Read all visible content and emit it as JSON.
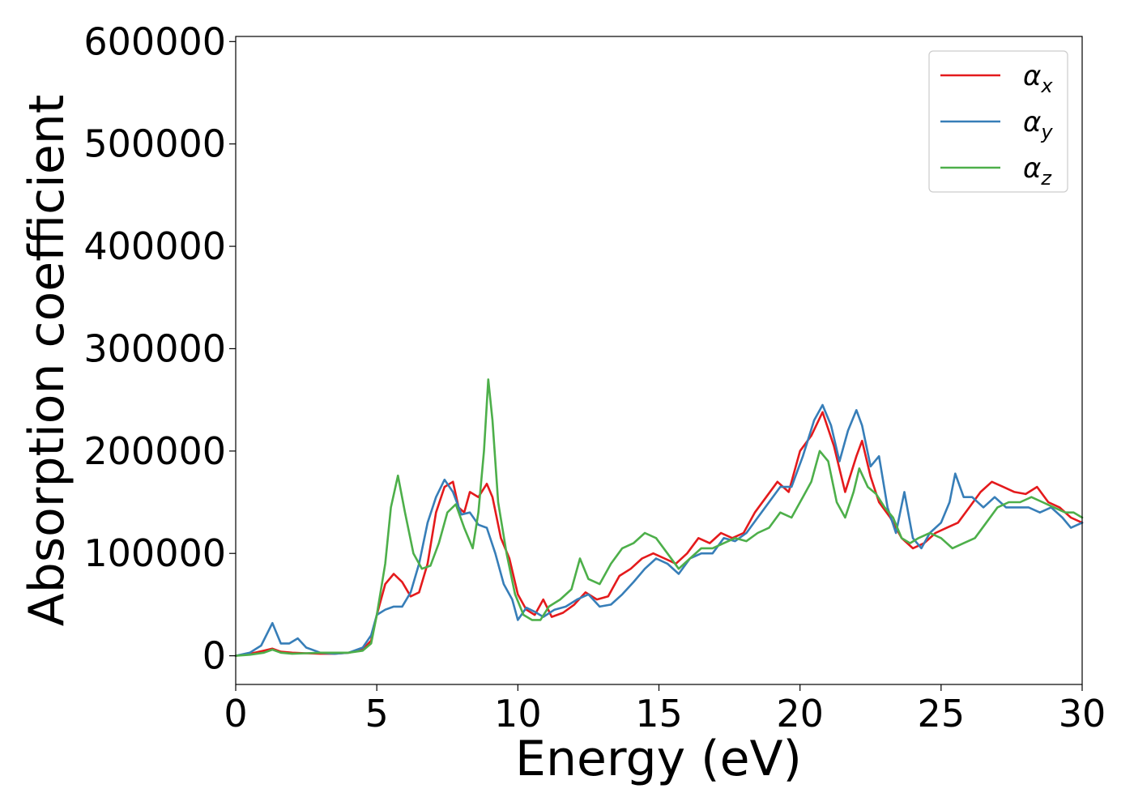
{
  "chart_data": {
    "type": "line",
    "xlabel": "Energy (eV)",
    "ylabel": "Absorption coefficient",
    "xlim": [
      0,
      30
    ],
    "ylim": [
      -28000,
      605000
    ],
    "xticks": [
      0,
      5,
      10,
      15,
      20,
      25,
      30
    ],
    "yticks": [
      0,
      100000,
      200000,
      300000,
      400000,
      500000,
      600000
    ],
    "grid": false,
    "legend_position": "top-right",
    "series": [
      {
        "name": "αx",
        "label_base": "α",
        "label_sub": "x",
        "color": "#e41a1c",
        "x": [
          0,
          0.5,
          1.0,
          1.3,
          1.6,
          2.0,
          2.5,
          3.0,
          3.5,
          4.0,
          4.5,
          4.8,
          5.0,
          5.3,
          5.6,
          5.9,
          6.2,
          6.5,
          6.8,
          7.1,
          7.4,
          7.7,
          7.9,
          8.1,
          8.3,
          8.6,
          8.9,
          9.1,
          9.4,
          9.7,
          10.0,
          10.3,
          10.6,
          10.9,
          11.2,
          11.6,
          12.0,
          12.4,
          12.8,
          13.2,
          13.6,
          14.0,
          14.4,
          14.8,
          15.2,
          15.6,
          16.0,
          16.4,
          16.8,
          17.2,
          17.6,
          18.0,
          18.4,
          18.8,
          19.2,
          19.6,
          20.0,
          20.4,
          20.8,
          21.2,
          21.6,
          22.0,
          22.2,
          22.5,
          22.8,
          23.2,
          23.6,
          24.0,
          24.4,
          24.8,
          25.2,
          25.6,
          26.0,
          26.4,
          26.8,
          27.2,
          27.6,
          28.0,
          28.4,
          28.8,
          29.2,
          29.6,
          30.0
        ],
        "y": [
          0,
          2000,
          5000,
          7000,
          4000,
          3000,
          2500,
          2000,
          2000,
          3000,
          6000,
          15000,
          40000,
          70000,
          80000,
          72000,
          58000,
          62000,
          90000,
          140000,
          165000,
          170000,
          145000,
          140000,
          160000,
          155000,
          168000,
          155000,
          115000,
          95000,
          60000,
          45000,
          40000,
          55000,
          38000,
          42000,
          50000,
          62000,
          55000,
          58000,
          78000,
          85000,
          95000,
          100000,
          95000,
          90000,
          100000,
          115000,
          110000,
          120000,
          115000,
          120000,
          140000,
          155000,
          170000,
          160000,
          200000,
          215000,
          238000,
          205000,
          160000,
          195000,
          210000,
          175000,
          150000,
          135000,
          115000,
          105000,
          110000,
          120000,
          125000,
          130000,
          145000,
          160000,
          170000,
          165000,
          160000,
          158000,
          165000,
          150000,
          145000,
          135000,
          130000
        ]
      },
      {
        "name": "αy",
        "label_base": "α",
        "label_sub": "y",
        "color": "#377eb8",
        "x": [
          0,
          0.5,
          0.9,
          1.3,
          1.6,
          1.9,
          2.2,
          2.5,
          3.0,
          3.5,
          4.0,
          4.5,
          4.8,
          5.0,
          5.3,
          5.6,
          5.9,
          6.2,
          6.5,
          6.8,
          7.1,
          7.4,
          7.7,
          8.0,
          8.3,
          8.6,
          8.9,
          9.2,
          9.5,
          9.8,
          10.0,
          10.3,
          10.6,
          10.9,
          11.3,
          11.7,
          12.1,
          12.5,
          12.9,
          13.3,
          13.7,
          14.1,
          14.5,
          14.9,
          15.3,
          15.7,
          16.1,
          16.5,
          16.9,
          17.3,
          17.7,
          18.1,
          18.5,
          18.9,
          19.3,
          19.7,
          20.1,
          20.5,
          20.8,
          21.1,
          21.4,
          21.7,
          22.0,
          22.2,
          22.5,
          22.8,
          23.1,
          23.4,
          23.7,
          24.0,
          24.3,
          24.6,
          25.0,
          25.3,
          25.5,
          25.8,
          26.1,
          26.5,
          26.9,
          27.3,
          27.7,
          28.1,
          28.5,
          28.9,
          29.3,
          29.6,
          30.0
        ],
        "y": [
          0,
          3000,
          10000,
          32000,
          12000,
          12000,
          17000,
          8000,
          3000,
          2000,
          3000,
          8000,
          20000,
          40000,
          45000,
          48000,
          48000,
          62000,
          90000,
          130000,
          155000,
          172000,
          160000,
          138000,
          140000,
          128000,
          125000,
          100000,
          70000,
          55000,
          35000,
          47000,
          43000,
          38000,
          45000,
          48000,
          55000,
          60000,
          48000,
          50000,
          60000,
          72000,
          85000,
          95000,
          90000,
          80000,
          95000,
          100000,
          100000,
          115000,
          112000,
          120000,
          135000,
          150000,
          165000,
          165000,
          195000,
          230000,
          245000,
          225000,
          190000,
          220000,
          240000,
          225000,
          185000,
          195000,
          145000,
          120000,
          160000,
          115000,
          105000,
          120000,
          130000,
          150000,
          178000,
          155000,
          155000,
          145000,
          155000,
          145000,
          145000,
          145000,
          140000,
          145000,
          135000,
          125000,
          130000
        ]
      },
      {
        "name": "αz",
        "label_base": "α",
        "label_sub": "z",
        "color": "#4daf4a",
        "x": [
          0,
          0.5,
          1.0,
          1.3,
          1.6,
          2.0,
          2.5,
          3.0,
          3.5,
          4.0,
          4.5,
          4.8,
          5.0,
          5.3,
          5.5,
          5.75,
          6.0,
          6.3,
          6.6,
          6.9,
          7.2,
          7.5,
          7.8,
          8.1,
          8.4,
          8.6,
          8.8,
          8.95,
          9.1,
          9.3,
          9.6,
          9.9,
          10.2,
          10.5,
          10.8,
          11.1,
          11.5,
          11.9,
          12.2,
          12.5,
          12.9,
          13.3,
          13.7,
          14.1,
          14.5,
          14.9,
          15.3,
          15.7,
          16.1,
          16.5,
          16.9,
          17.3,
          17.7,
          18.1,
          18.5,
          18.9,
          19.3,
          19.7,
          20.1,
          20.4,
          20.7,
          21.0,
          21.3,
          21.6,
          21.9,
          22.1,
          22.4,
          22.7,
          23.0,
          23.3,
          23.6,
          23.9,
          24.2,
          24.6,
          25.0,
          25.4,
          25.8,
          26.2,
          26.6,
          27.0,
          27.4,
          27.8,
          28.2,
          28.6,
          29.0,
          29.4,
          29.7,
          30.0
        ],
        "y": [
          0,
          1000,
          3000,
          6000,
          3000,
          2000,
          2500,
          3000,
          3000,
          3000,
          5000,
          12000,
          40000,
          90000,
          145000,
          176000,
          140000,
          100000,
          85000,
          88000,
          110000,
          140000,
          148000,
          125000,
          105000,
          140000,
          200000,
          270000,
          230000,
          150000,
          100000,
          60000,
          40000,
          35000,
          35000,
          48000,
          55000,
          65000,
          95000,
          75000,
          70000,
          90000,
          105000,
          110000,
          120000,
          115000,
          100000,
          85000,
          95000,
          105000,
          105000,
          110000,
          115000,
          112000,
          120000,
          125000,
          140000,
          135000,
          155000,
          170000,
          200000,
          190000,
          150000,
          135000,
          160000,
          183000,
          165000,
          158000,
          145000,
          135000,
          115000,
          110000,
          115000,
          120000,
          115000,
          105000,
          110000,
          115000,
          130000,
          145000,
          150000,
          150000,
          155000,
          150000,
          145000,
          140000,
          140000,
          135000
        ]
      }
    ]
  }
}
